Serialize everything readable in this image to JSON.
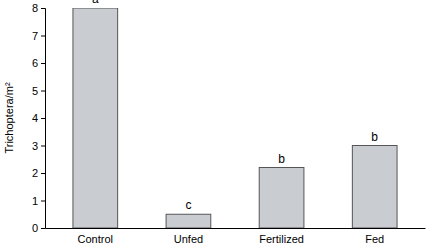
{
  "chart_data": {
    "type": "bar",
    "y_label": "Trichoptera/m²",
    "categories": [
      "Control",
      "Unfed",
      "Fertilized",
      "Fed"
    ],
    "values": [
      8,
      0.5,
      2.2,
      3
    ],
    "annotations": [
      "a",
      "c",
      "b",
      "b"
    ],
    "color": "#c9cdd1",
    "ylim": [
      0,
      8
    ],
    "yticks": [
      0,
      1,
      2,
      3,
      4,
      5,
      6,
      7,
      8
    ],
    "grid": false
  }
}
